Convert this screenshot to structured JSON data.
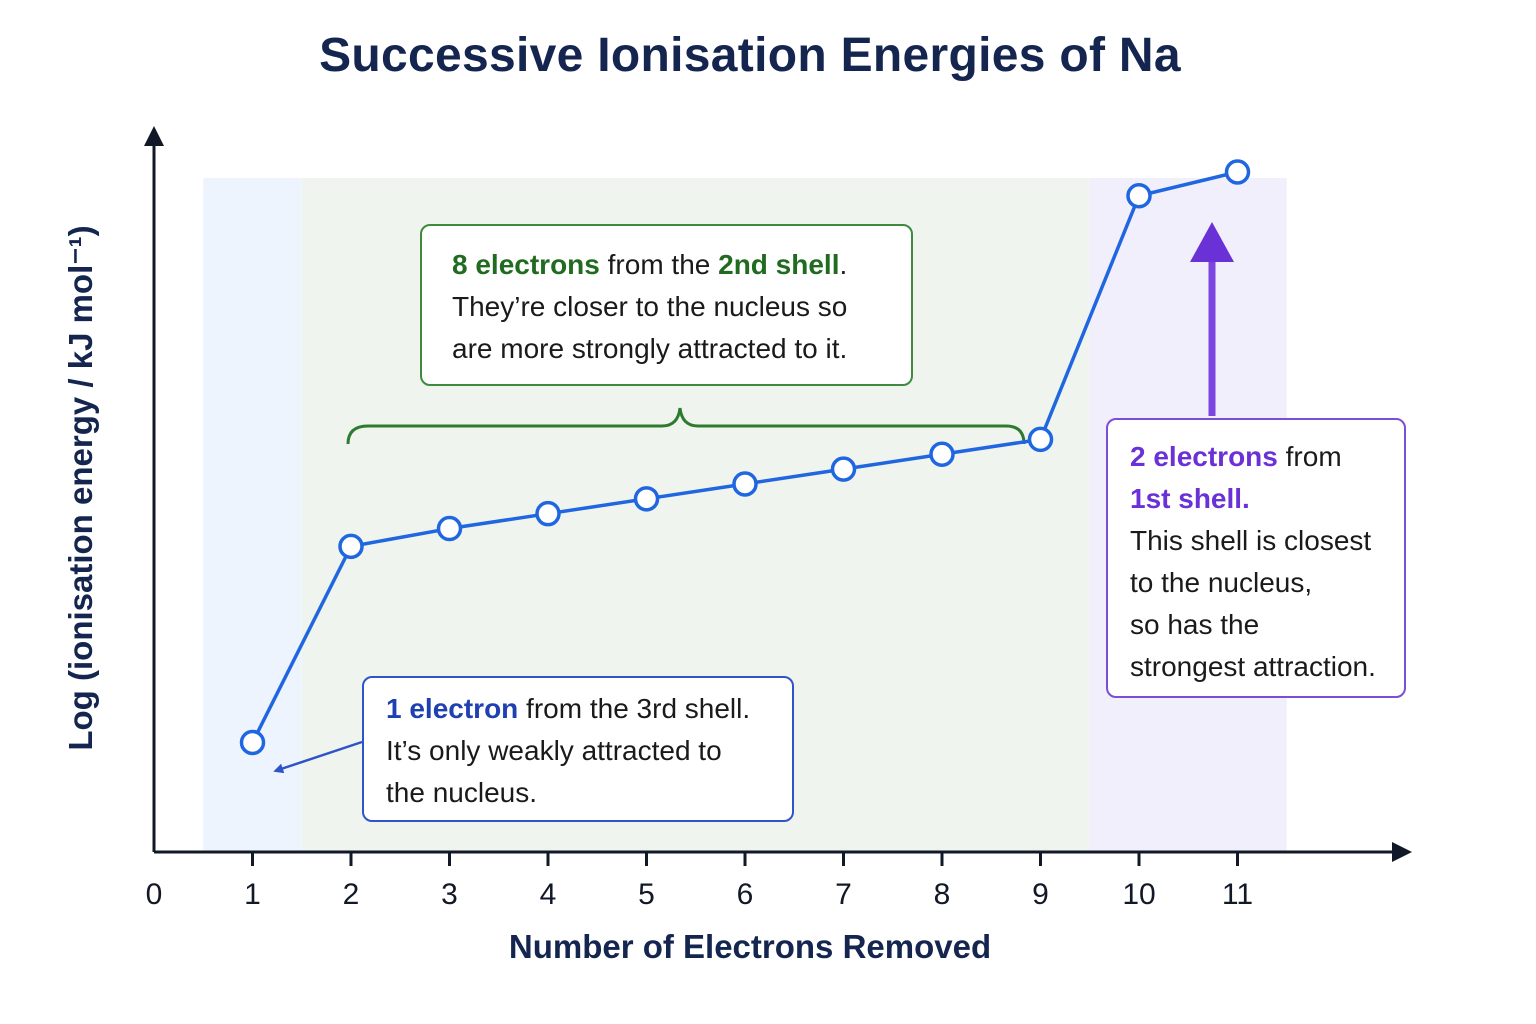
{
  "chart_data": {
    "type": "line",
    "title": "Successive Ionisation Energies of Na",
    "xlabel": "Number of Electrons Removed",
    "ylabel": "Log (ionisation energy / kJ mol⁻¹)",
    "x_ticks": [
      "0",
      "1",
      "2",
      "3",
      "4",
      "5",
      "6",
      "7",
      "8",
      "9",
      "10",
      "11"
    ],
    "xlim": [
      0,
      11.5
    ],
    "y_axis_numbers_shown": false,
    "series": [
      {
        "x": [
          1,
          2,
          3,
          4,
          5,
          6,
          7,
          8,
          9,
          10,
          11
        ],
        "y": [
          0.08,
          0.41,
          0.44,
          0.465,
          0.49,
          0.515,
          0.54,
          0.565,
          0.59,
          1.0,
          1.04
        ],
        "color": "#1f66e0"
      }
    ],
    "shaded_regions": [
      {
        "shell": "3rd",
        "x_range": [
          0.5,
          1.5
        ],
        "color": "#eef4fd"
      },
      {
        "shell": "2nd",
        "x_range": [
          1.5,
          9.5
        ],
        "color": "#eff5ee"
      },
      {
        "shell": "1st",
        "x_range": [
          9.5,
          11.5
        ],
        "color": "#f1effb"
      }
    ],
    "annotations": {
      "third_shell": {
        "highlight": "1 electron",
        "rest_line1": " from the 3rd shell.",
        "line2": "It’s only weakly attracted to",
        "line3": "the nucleus."
      },
      "second_shell": {
        "highlight1": "8 electrons",
        "middle": " from the ",
        "highlight2": "2nd shell",
        "end": ".",
        "line2": "They’re closer to the nucleus so",
        "line3": "are more strongly attracted to it."
      },
      "first_shell": {
        "highlight1": "2 electrons",
        "rest1": " from",
        "highlight2": "1st shell.",
        "line3": "This shell is closest",
        "line4": "to the nucleus,",
        "line5": "so has the",
        "line6": "strongest attraction."
      }
    },
    "colors": {
      "line": "#1f66e0",
      "title": "#14254f",
      "third_shell": "#2f54c9",
      "second_shell": "#3e8a3e",
      "first_shell": "#7c4dd6"
    },
    "grid": false
  }
}
